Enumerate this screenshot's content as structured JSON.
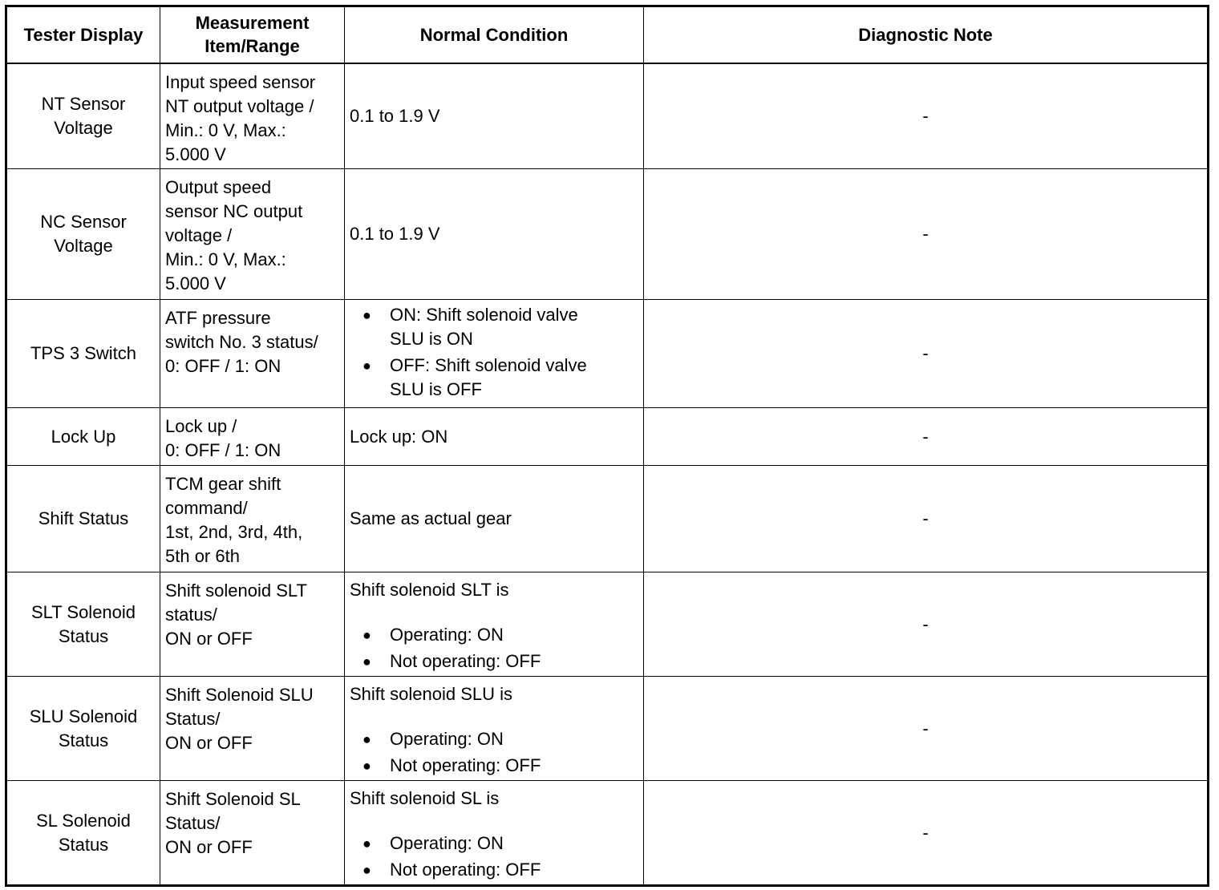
{
  "headers": [
    "Tester Display",
    "Measurement Item/Range",
    "Normal Condition",
    "Diagnostic Note"
  ],
  "rows": [
    {
      "display": [
        "NT Sensor",
        "Voltage"
      ],
      "measurement": [
        "Input speed sensor",
        "NT output voltage /",
        "Min.: 0 V, Max.:",
        "5.000 V"
      ],
      "normal": {
        "text": "0.1 to 1.9 V"
      },
      "note": "-"
    },
    {
      "display": [
        "NC Sensor",
        "Voltage"
      ],
      "measurement": [
        "Output speed",
        "sensor NC output",
        "voltage /",
        "Min.: 0 V, Max.:",
        "5.000 V"
      ],
      "normal": {
        "text": "0.1 to 1.9 V"
      },
      "note": "-"
    },
    {
      "display": [
        "TPS 3 Switch"
      ],
      "measurement": [
        "ATF pressure",
        "switch No. 3 status/",
        "0: OFF / 1: ON"
      ],
      "normal": {
        "bullets": [
          [
            "ON: Shift solenoid valve",
            "SLU is ON"
          ],
          [
            "OFF: Shift solenoid valve",
            "SLU is OFF"
          ]
        ]
      },
      "note": "-"
    },
    {
      "display": [
        "Lock Up"
      ],
      "measurement": [
        "Lock up /",
        "0: OFF / 1: ON"
      ],
      "normal": {
        "text": "Lock up: ON"
      },
      "note": "-"
    },
    {
      "display": [
        "Shift Status"
      ],
      "measurement": [
        "TCM gear shift",
        "command/",
        "1st, 2nd, 3rd, 4th,",
        "5th or 6th"
      ],
      "normal": {
        "text": "Same as actual gear"
      },
      "note": "-"
    },
    {
      "display": [
        "SLT Solenoid",
        "Status"
      ],
      "measurement": [
        "Shift solenoid SLT",
        "status/",
        "ON or OFF"
      ],
      "normal": {
        "intro": "Shift solenoid SLT is",
        "bullets": [
          [
            "Operating: ON"
          ],
          [
            "Not operating: OFF"
          ]
        ]
      },
      "note": "-"
    },
    {
      "display": [
        "SLU Solenoid",
        "Status"
      ],
      "measurement": [
        "Shift Solenoid SLU",
        "Status/",
        "ON or OFF"
      ],
      "normal": {
        "intro": "Shift solenoid SLU is",
        "bullets": [
          [
            "Operating: ON"
          ],
          [
            "Not operating: OFF"
          ]
        ]
      },
      "note": "-"
    },
    {
      "display": [
        "SL Solenoid",
        "Status"
      ],
      "measurement": [
        "Shift Solenoid SL",
        "Status/",
        "ON or OFF"
      ],
      "normal": {
        "intro": "Shift solenoid SL is",
        "bullets": [
          [
            "Operating: ON"
          ],
          [
            "Not operating: OFF"
          ]
        ]
      },
      "note": "-"
    }
  ]
}
